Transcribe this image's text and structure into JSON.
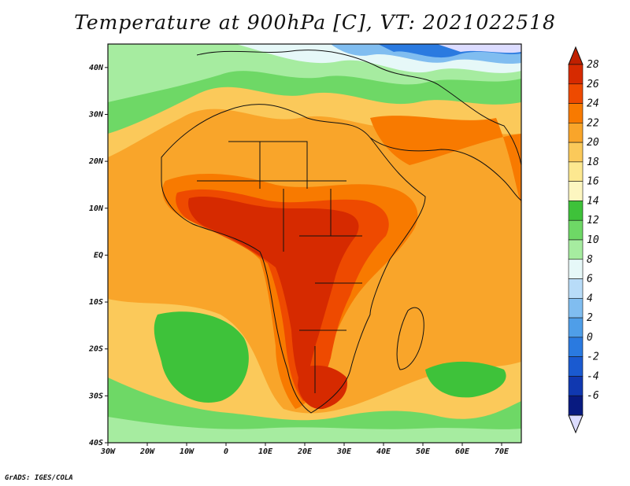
{
  "title": "Temperature at 900hPa [C], VT: 2021022518",
  "credit": "GrADS: IGES/COLA",
  "map": {
    "x_ticks": [
      "30W",
      "20W",
      "10W",
      "0",
      "10E",
      "20E",
      "30E",
      "40E",
      "50E",
      "60E",
      "70E"
    ],
    "y_ticks": [
      "40N",
      "30N",
      "20N",
      "10N",
      "EQ",
      "10S",
      "20S",
      "30S",
      "40S"
    ],
    "lon_range": [
      -30,
      75
    ],
    "lat_range": [
      -40,
      45
    ]
  },
  "colorbar": {
    "labels": [
      "28",
      "26",
      "24",
      "22",
      "20",
      "18",
      "16",
      "14",
      "12",
      "10",
      "8",
      "6",
      "4",
      "2",
      "0",
      "-2",
      "-4",
      "-6"
    ],
    "colors": [
      "#d62a00",
      "#ee4a00",
      "#f87a00",
      "#f9a52a",
      "#fbc95a",
      "#fde890",
      "#fdf6c0",
      "#3ec23a",
      "#6ed866",
      "#a6eca0",
      "#e6f8f8",
      "#b8dcf8",
      "#80bdf0",
      "#4f9ee8",
      "#2a7ae0",
      "#1a5ad0",
      "#1038b0",
      "#081a80"
    ],
    "top_color": "#c02000",
    "bottom_color": "#dcdcff"
  },
  "field_colors": {
    "ocean_warm": "#f9a52a",
    "ocean_mild": "#fbc95a",
    "ocean_pale": "#fde890",
    "green": "#3ec23a",
    "light_green": "#6ed866",
    "pale_green": "#a6eca0",
    "cyan_pale": "#e6f8f8",
    "blue_light": "#80bdf0",
    "blue": "#2a7ae0",
    "blue_dark": "#1038b0",
    "lavender": "#dcdcff",
    "hot": "#ee4a00",
    "hotter": "#d62a00",
    "orange": "#f87a00"
  }
}
